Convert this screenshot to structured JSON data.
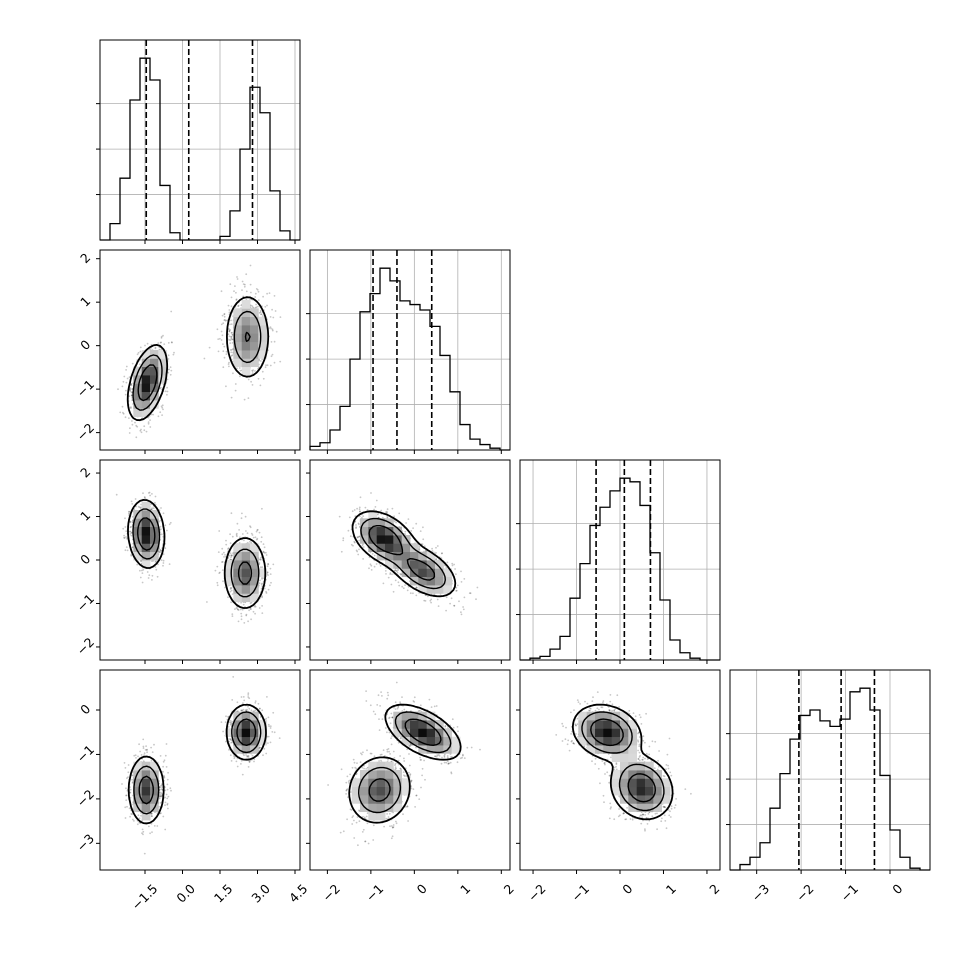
{
  "chart_data": {
    "type": "corner",
    "title": "",
    "dimensions": 4,
    "grid": true,
    "ranges": [
      [
        -3.3,
        4.7
      ],
      [
        -2.4,
        2.2
      ],
      [
        -2.3,
        2.3
      ],
      [
        -3.6,
        0.9
      ]
    ],
    "ticks": [
      [
        -1.5,
        0.0,
        1.5,
        3.0,
        4.5
      ],
      [
        -2,
        -1,
        0,
        1,
        2
      ],
      [
        -2,
        -1,
        0,
        1,
        2
      ],
      [
        -3,
        -2,
        -1,
        0
      ]
    ],
    "tick_labels": [
      [
        "−1.5",
        "0.0",
        "1.5",
        "3.0",
        "4.5"
      ],
      [
        "−2",
        "−1",
        "0",
        "1",
        "2"
      ],
      [
        "−2",
        "−1",
        "0",
        "1",
        "2"
      ],
      [
        "−3",
        "−2",
        "−1",
        "0"
      ]
    ],
    "quantiles": [
      [
        -1.45,
        0.25,
        2.8
      ],
      [
        -0.95,
        -0.4,
        0.4
      ],
      [
        -0.55,
        0.1,
        0.7
      ],
      [
        -2.05,
        -1.1,
        -0.35
      ]
    ],
    "histograms": [
      {
        "bin_edges": [
          -3.3,
          -2.9,
          -2.5,
          -2.1,
          -1.7,
          -1.3,
          -0.9,
          -0.5,
          -0.1,
          0.3,
          0.7,
          1.1,
          1.5,
          1.9,
          2.3,
          2.7,
          3.1,
          3.5,
          3.9,
          4.3,
          4.7
        ],
        "counts": [
          0.0,
          0.09,
          0.34,
          0.77,
          1.0,
          0.88,
          0.3,
          0.04,
          0.0,
          0.0,
          0.0,
          0.0,
          0.02,
          0.16,
          0.5,
          0.84,
          0.7,
          0.27,
          0.05,
          0.0
        ]
      },
      {
        "bin_edges": [
          -2.4,
          -2.17,
          -1.94,
          -1.71,
          -1.48,
          -1.25,
          -1.02,
          -0.79,
          -0.56,
          -0.33,
          -0.1,
          0.13,
          0.36,
          0.59,
          0.82,
          1.05,
          1.28,
          1.51,
          1.74,
          1.97,
          2.2
        ],
        "counts": [
          0.02,
          0.04,
          0.11,
          0.24,
          0.5,
          0.76,
          0.86,
          1.0,
          0.93,
          0.82,
          0.8,
          0.77,
          0.68,
          0.52,
          0.32,
          0.14,
          0.06,
          0.03,
          0.01,
          0.0
        ]
      },
      {
        "bin_edges": [
          -2.3,
          -2.07,
          -1.84,
          -1.61,
          -1.38,
          -1.15,
          -0.92,
          -0.69,
          -0.46,
          -0.23,
          0.0,
          0.23,
          0.46,
          0.69,
          0.92,
          1.15,
          1.38,
          1.61,
          1.84,
          2.07,
          2.3
        ],
        "counts": [
          0.0,
          0.01,
          0.02,
          0.06,
          0.13,
          0.34,
          0.53,
          0.74,
          0.84,
          0.93,
          1.0,
          0.98,
          0.85,
          0.59,
          0.33,
          0.11,
          0.04,
          0.01,
          0.0,
          0.0
        ]
      },
      {
        "bin_edges": [
          -3.6,
          -3.375,
          -3.15,
          -2.925,
          -2.7,
          -2.475,
          -2.25,
          -2.025,
          -1.8,
          -1.575,
          -1.35,
          -1.125,
          -0.9,
          -0.675,
          -0.45,
          -0.225,
          0.0,
          0.225,
          0.45,
          0.675,
          0.9
        ],
        "counts": [
          0.0,
          0.03,
          0.07,
          0.15,
          0.34,
          0.53,
          0.72,
          0.85,
          0.88,
          0.82,
          0.79,
          0.83,
          0.98,
          1.0,
          0.88,
          0.52,
          0.22,
          0.07,
          0.01,
          0.0
        ]
      }
    ],
    "pairs": [
      {
        "x_dim": 0,
        "y_dim": 1,
        "modes": [
          {
            "mean": [
              -1.4,
              -0.85
            ],
            "sd": [
              0.38,
              0.42
            ],
            "rho": 0.45,
            "weight": 0.5
          },
          {
            "mean": [
              2.6,
              0.2
            ],
            "sd": [
              0.45,
              0.5
            ],
            "rho": 0.0,
            "weight": 0.5
          }
        ]
      },
      {
        "x_dim": 0,
        "y_dim": 2,
        "modes": [
          {
            "mean": [
              -1.45,
              0.6
            ],
            "sd": [
              0.35,
              0.38
            ],
            "rho": -0.1,
            "weight": 0.5
          },
          {
            "mean": [
              2.5,
              -0.3
            ],
            "sd": [
              0.42,
              0.42
            ],
            "rho": 0.0,
            "weight": 0.5
          }
        ]
      },
      {
        "x_dim": 1,
        "y_dim": 2,
        "modes": [
          {
            "mean": [
              -0.7,
              0.5
            ],
            "sd": [
              0.35,
              0.3
            ],
            "rho": -0.4,
            "weight": 0.55
          },
          {
            "mean": [
              0.2,
              -0.25
            ],
            "sd": [
              0.38,
              0.3
            ],
            "rho": -0.5,
            "weight": 0.45
          }
        ]
      },
      {
        "x_dim": 0,
        "y_dim": 3,
        "modes": [
          {
            "mean": [
              -1.45,
              -1.8
            ],
            "sd": [
              0.35,
              0.38
            ],
            "rho": 0.0,
            "weight": 0.5
          },
          {
            "mean": [
              2.55,
              -0.5
            ],
            "sd": [
              0.38,
              0.3
            ],
            "rho": 0.0,
            "weight": 0.5
          }
        ]
      },
      {
        "x_dim": 1,
        "y_dim": 3,
        "modes": [
          {
            "mean": [
              -0.8,
              -1.8
            ],
            "sd": [
              0.36,
              0.38
            ],
            "rho": 0.1,
            "weight": 0.5
          },
          {
            "mean": [
              0.2,
              -0.5
            ],
            "sd": [
              0.42,
              0.3
            ],
            "rho": -0.55,
            "weight": 0.5
          }
        ]
      },
      {
        "x_dim": 2,
        "y_dim": 3,
        "modes": [
          {
            "mean": [
              -0.3,
              -0.5
            ],
            "sd": [
              0.38,
              0.3
            ],
            "rho": -0.2,
            "weight": 0.5
          },
          {
            "mean": [
              0.5,
              -1.75
            ],
            "sd": [
              0.35,
              0.35
            ],
            "rho": -0.15,
            "weight": 0.5
          }
        ]
      }
    ]
  }
}
